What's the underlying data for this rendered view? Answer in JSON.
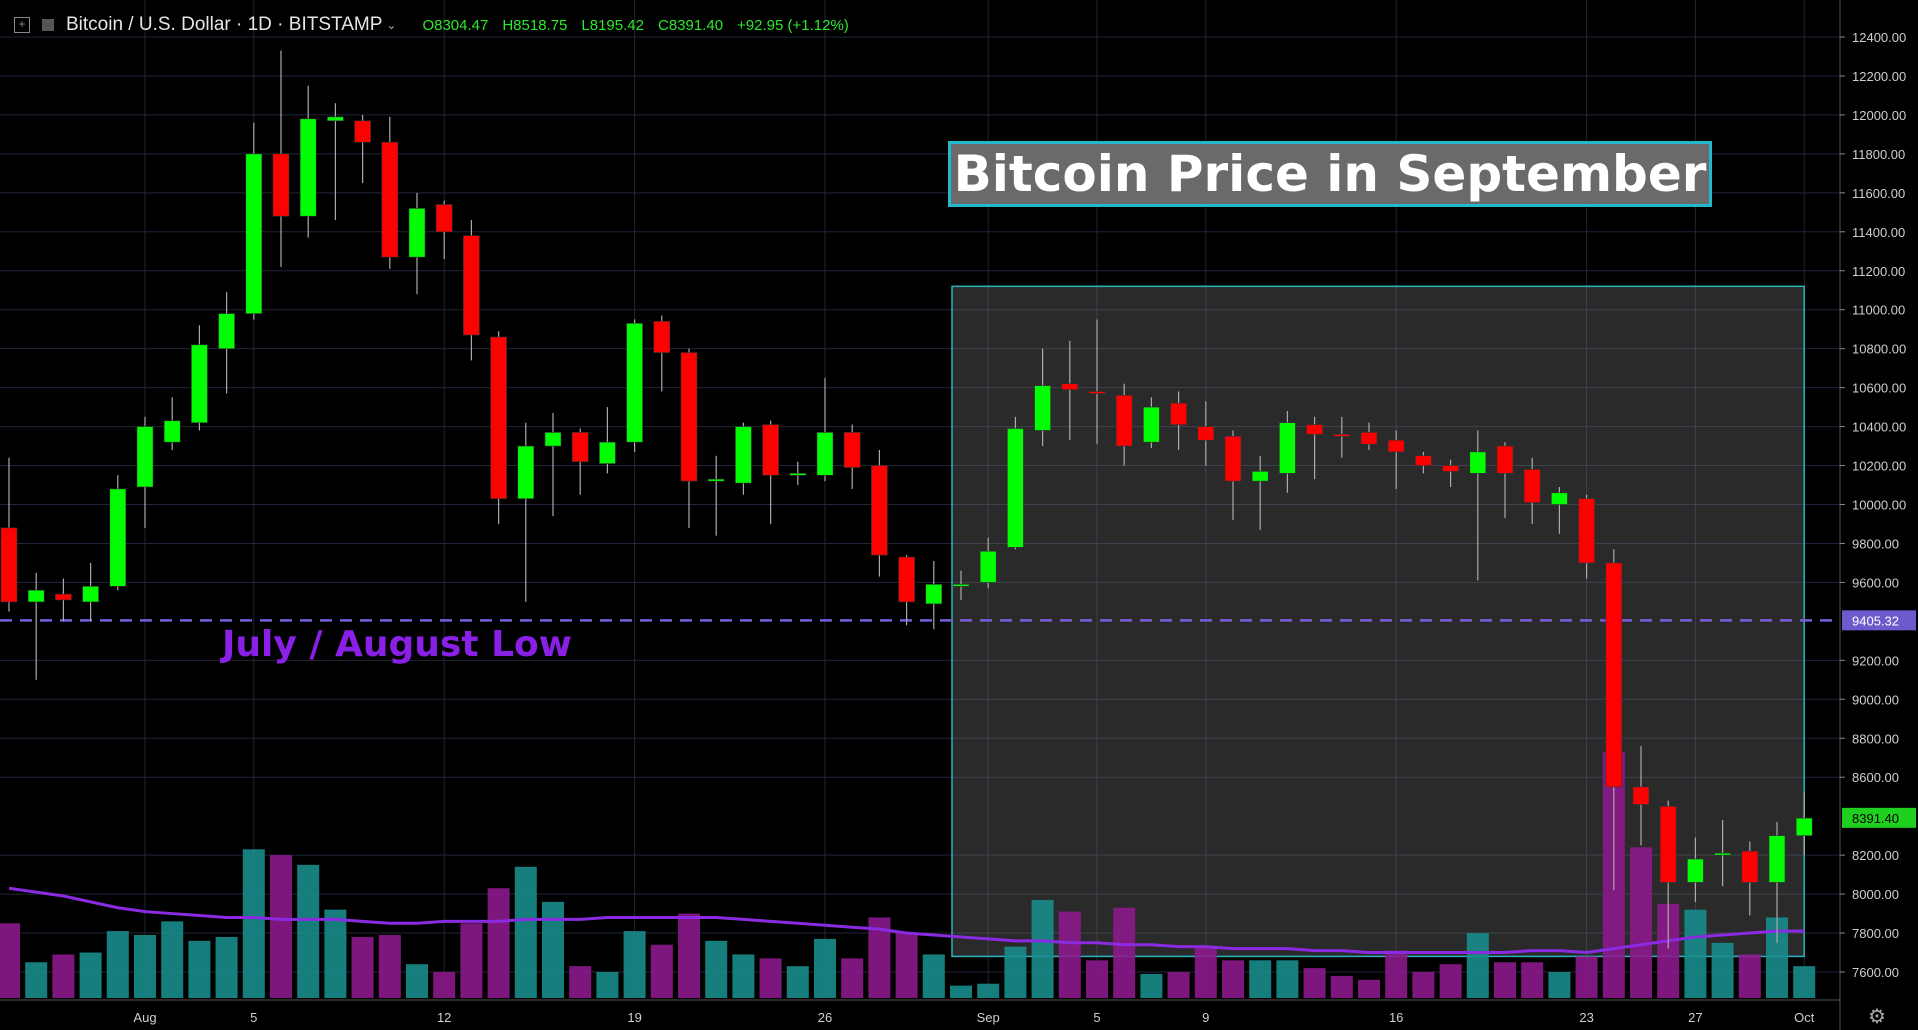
{
  "header": {
    "symbol": "Bitcoin / U.S. Dollar · 1D · BITSTAMP",
    "open": "O8304.47",
    "high": "H8518.75",
    "low": "L8195.42",
    "close": "C8391.40",
    "change": "+92.95 (+1.12%)"
  },
  "annotations": {
    "title": "Bitcoin Price in September",
    "low_label": "July / August Low",
    "low_level": "9405.32",
    "last_price": "8391.40"
  },
  "colors": {
    "up": "#00ff00",
    "down": "#ff0000",
    "vol_up": "#1a8c8c",
    "vol_down": "#8b1a8b",
    "ma": "#8a2be2",
    "box_border": "#2bb3c0",
    "low_line": "#7a5cdc"
  },
  "chart_data": {
    "type": "candlestick",
    "title": "Bitcoin Price in September",
    "ylim": [
      7450,
      12550
    ],
    "y_ticks": [
      "12400.00",
      "12200.00",
      "12000.00",
      "11800.00",
      "11600.00",
      "11400.00",
      "11200.00",
      "11000.00",
      "10800.00",
      "10600.00",
      "10400.00",
      "10200.00",
      "10000.00",
      "9800.00",
      "9600.00",
      "9200.00",
      "9000.00",
      "8800.00",
      "8600.00",
      "8200.00",
      "8000.00",
      "7800.00",
      "7600.00"
    ],
    "x_ticks": [
      {
        "label": "Aug",
        "index": 5
      },
      {
        "label": "5",
        "index": 9
      },
      {
        "label": "12",
        "index": 16
      },
      {
        "label": "19",
        "index": 23
      },
      {
        "label": "26",
        "index": 30
      },
      {
        "label": "Sep",
        "index": 36
      },
      {
        "label": "5",
        "index": 40
      },
      {
        "label": "9",
        "index": 44
      },
      {
        "label": "16",
        "index": 51
      },
      {
        "label": "23",
        "index": 58
      },
      {
        "label": "27",
        "index": 62
      },
      {
        "label": "Oct",
        "index": 66
      }
    ],
    "support_level": 9405.32,
    "highlight_range": {
      "start_index": 35,
      "end_index": 66,
      "price_top": 11120,
      "price_bottom": 7680
    },
    "candles": [
      [
        9880,
        9500,
        10240,
        9450
      ],
      [
        9500,
        9560,
        9650,
        9100
      ],
      [
        9540,
        9510,
        9620,
        9400
      ],
      [
        9500,
        9580,
        9700,
        9400
      ],
      [
        9580,
        10080,
        10150,
        9560
      ],
      [
        10090,
        10400,
        10450,
        9880
      ],
      [
        10320,
        10430,
        10550,
        10280
      ],
      [
        10420,
        10820,
        10920,
        10380
      ],
      [
        10800,
        10980,
        11090,
        10570
      ],
      [
        10980,
        11800,
        11960,
        10950
      ],
      [
        11800,
        11480,
        12330,
        11220
      ],
      [
        11480,
        11980,
        12150,
        11370
      ],
      [
        11970,
        11990,
        12060,
        11460
      ],
      [
        11970,
        11860,
        12000,
        11650
      ],
      [
        11860,
        11270,
        11990,
        11210
      ],
      [
        11270,
        11520,
        11600,
        11080
      ],
      [
        11540,
        11400,
        11560,
        11260
      ],
      [
        11380,
        10870,
        11460,
        10740
      ],
      [
        10860,
        10030,
        10890,
        9900
      ],
      [
        10030,
        10300,
        10420,
        9500
      ],
      [
        10300,
        10370,
        10470,
        9940
      ],
      [
        10370,
        10220,
        10390,
        10050
      ],
      [
        10210,
        10320,
        10500,
        10160
      ],
      [
        10320,
        10930,
        10950,
        10270
      ],
      [
        10940,
        10780,
        10970,
        10580
      ],
      [
        10780,
        10120,
        10800,
        9880
      ],
      [
        10120,
        10130,
        10250,
        9840
      ],
      [
        10110,
        10400,
        10420,
        10050
      ],
      [
        10410,
        10150,
        10430,
        9900
      ],
      [
        10150,
        10160,
        10220,
        10100
      ],
      [
        10150,
        10370,
        10650,
        10120
      ],
      [
        10370,
        10190,
        10410,
        10080
      ],
      [
        10200,
        9740,
        10280,
        9630
      ],
      [
        9730,
        9500,
        9740,
        9380
      ],
      [
        9490,
        9590,
        9710,
        9360
      ],
      [
        9580,
        9590,
        9660,
        9510
      ],
      [
        9600,
        9760,
        9830,
        9570
      ],
      [
        9780,
        10390,
        10450,
        9770
      ],
      [
        10380,
        10610,
        10800,
        10300
      ],
      [
        10620,
        10590,
        10840,
        10330
      ],
      [
        10580,
        10570,
        10950,
        10310
      ],
      [
        10560,
        10300,
        10620,
        10200
      ],
      [
        10320,
        10500,
        10550,
        10290
      ],
      [
        10520,
        10410,
        10580,
        10280
      ],
      [
        10400,
        10330,
        10530,
        10200
      ],
      [
        10350,
        10120,
        10380,
        9920
      ],
      [
        10120,
        10170,
        10250,
        9870
      ],
      [
        10160,
        10420,
        10480,
        10060
      ],
      [
        10410,
        10360,
        10450,
        10130
      ],
      [
        10360,
        10350,
        10450,
        10240
      ],
      [
        10370,
        10310,
        10420,
        10280
      ],
      [
        10330,
        10270,
        10380,
        10080
      ],
      [
        10250,
        10200,
        10270,
        10160
      ],
      [
        10200,
        10170,
        10230,
        10090
      ],
      [
        10160,
        10270,
        10380,
        9610
      ],
      [
        10300,
        10160,
        10320,
        9930
      ],
      [
        10180,
        10010,
        10240,
        9900
      ],
      [
        10000,
        10060,
        10090,
        9850
      ],
      [
        10030,
        9700,
        10050,
        9620
      ],
      [
        9700,
        8550,
        9770,
        8020
      ],
      [
        8550,
        8460,
        8760,
        8250
      ],
      [
        8450,
        8060,
        8480,
        7720
      ],
      [
        8060,
        8180,
        8290,
        7960
      ],
      [
        8200,
        8210,
        8380,
        8040
      ],
      [
        8220,
        8060,
        8270,
        7890
      ],
      [
        8060,
        8300,
        8370,
        7750
      ],
      [
        8300,
        8390,
        8520,
        8200
      ]
    ],
    "volume": [
      7850,
      7650,
      7690,
      7700,
      7810,
      7790,
      7860,
      7760,
      7780,
      8230,
      8200,
      8150,
      7920,
      7780,
      7790,
      7640,
      7600,
      7850,
      8030,
      8140,
      7960,
      7630,
      7600,
      7810,
      7740,
      7900,
      7760,
      7690,
      7670,
      7630,
      7770,
      7670,
      7880,
      7800,
      7690,
      7530,
      7540,
      7730,
      7970,
      7910,
      7660,
      7930,
      7590,
      7600,
      7730,
      7660,
      7660,
      7660,
      7620,
      7580,
      7560,
      7710,
      7600,
      7640,
      7800,
      7650,
      7650,
      7600,
      7680,
      8730,
      8240,
      7950,
      7920,
      7750,
      7690,
      7880,
      7630
    ],
    "ma_line": [
      8030,
      8010,
      7990,
      7960,
      7930,
      7910,
      7900,
      7890,
      7880,
      7880,
      7870,
      7870,
      7870,
      7860,
      7850,
      7850,
      7860,
      7860,
      7860,
      7870,
      7870,
      7870,
      7880,
      7880,
      7880,
      7880,
      7880,
      7870,
      7860,
      7850,
      7840,
      7830,
      7820,
      7800,
      7790,
      7780,
      7770,
      7760,
      7760,
      7750,
      7750,
      7740,
      7740,
      7730,
      7730,
      7720,
      7720,
      7720,
      7710,
      7710,
      7700,
      7700,
      7700,
      7700,
      7700,
      7700,
      7710,
      7710,
      7700,
      7720,
      7740,
      7760,
      7780,
      7790,
      7800,
      7810,
      7810
    ]
  }
}
